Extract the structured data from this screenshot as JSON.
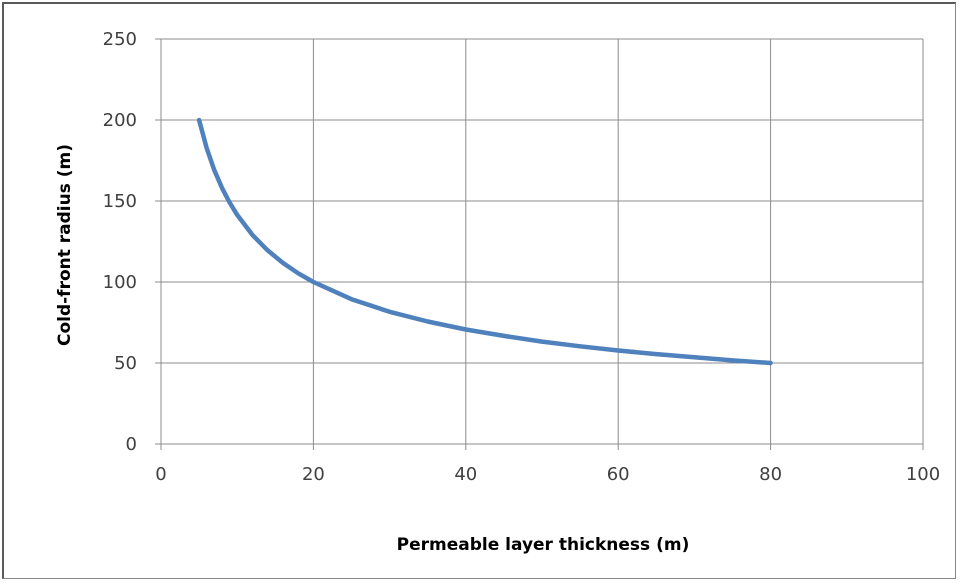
{
  "chart_data": {
    "type": "line",
    "title": "",
    "xlabel": "Permeable layer thickness (m)",
    "ylabel": "Cold-front radius (m)",
    "xlim": [
      0,
      100
    ],
    "ylim": [
      0,
      250
    ],
    "x_ticks": [
      0,
      20,
      40,
      60,
      80,
      100
    ],
    "y_ticks": [
      0,
      50,
      100,
      150,
      200,
      250
    ],
    "grid": true,
    "legend": "none",
    "series": [
      {
        "color": "#4f81bd",
        "points": [
          [
            5,
            200
          ],
          [
            6,
            182.6
          ],
          [
            7,
            169.0
          ],
          [
            8,
            158.1
          ],
          [
            9,
            149.1
          ],
          [
            10,
            141.4
          ],
          [
            12,
            129.1
          ],
          [
            14,
            119.5
          ],
          [
            16,
            111.8
          ],
          [
            18,
            105.4
          ],
          [
            20,
            100.0
          ],
          [
            25,
            89.4
          ],
          [
            30,
            81.6
          ],
          [
            35,
            75.6
          ],
          [
            40,
            70.7
          ],
          [
            45,
            66.7
          ],
          [
            50,
            63.2
          ],
          [
            55,
            60.3
          ],
          [
            60,
            57.7
          ],
          [
            65,
            55.5
          ],
          [
            70,
            53.5
          ],
          [
            75,
            51.6
          ],
          [
            80,
            50.0
          ]
        ]
      }
    ]
  }
}
